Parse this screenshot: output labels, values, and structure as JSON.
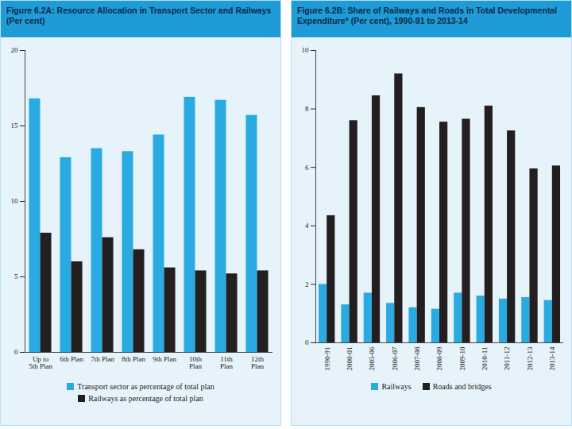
{
  "chart_data": [
    {
      "type": "bar",
      "title": "Figure 6.2A: Resource Allocation in Transport Sector and Railways (Per cent)",
      "categories": [
        "Up to 5th Plan",
        "6th Plan",
        "7th Plan",
        "8th Plan",
        "9th Plan",
        "10th Plan",
        "11th Plan",
        "12th Plan"
      ],
      "series": [
        {
          "name": "Transport sector as percentage of total plan",
          "color": "#29abe2",
          "values": [
            16.8,
            12.9,
            13.5,
            13.3,
            14.4,
            16.9,
            16.7,
            15.7
          ]
        },
        {
          "name": "Railways as percentage of total plan",
          "color": "#231f20",
          "values": [
            7.9,
            6.0,
            7.6,
            6.8,
            5.6,
            5.4,
            5.2,
            5.4
          ]
        }
      ],
      "ylim": [
        0,
        20
      ],
      "yticks": [
        0,
        5,
        10,
        15,
        20
      ],
      "legend": "bottom"
    },
    {
      "type": "bar",
      "title": "Figure 6.2B: Share of Railways and Roads in Total Developmental Expenditure* (Per cent), 1990-91 to 2013-14",
      "categories": [
        "1990-91",
        "2000-01",
        "2005-06",
        "2006-07",
        "2007-08",
        "2008-09",
        "2009-10",
        "2010-11",
        "2011-12",
        "2012-13",
        "2013-14"
      ],
      "series": [
        {
          "name": "Railways",
          "color": "#29abe2",
          "values": [
            2.0,
            1.3,
            1.7,
            1.35,
            1.2,
            1.15,
            1.7,
            1.6,
            1.5,
            1.55,
            1.45
          ]
        },
        {
          "name": "Roads and bridges",
          "color": "#231f20",
          "values": [
            4.35,
            7.6,
            8.45,
            9.2,
            8.05,
            7.55,
            7.65,
            8.1,
            7.25,
            5.95,
            6.05
          ]
        }
      ],
      "ylim": [
        0,
        10
      ],
      "yticks": [
        0,
        2,
        4,
        6,
        8,
        10
      ],
      "legend": "bottom"
    }
  ]
}
